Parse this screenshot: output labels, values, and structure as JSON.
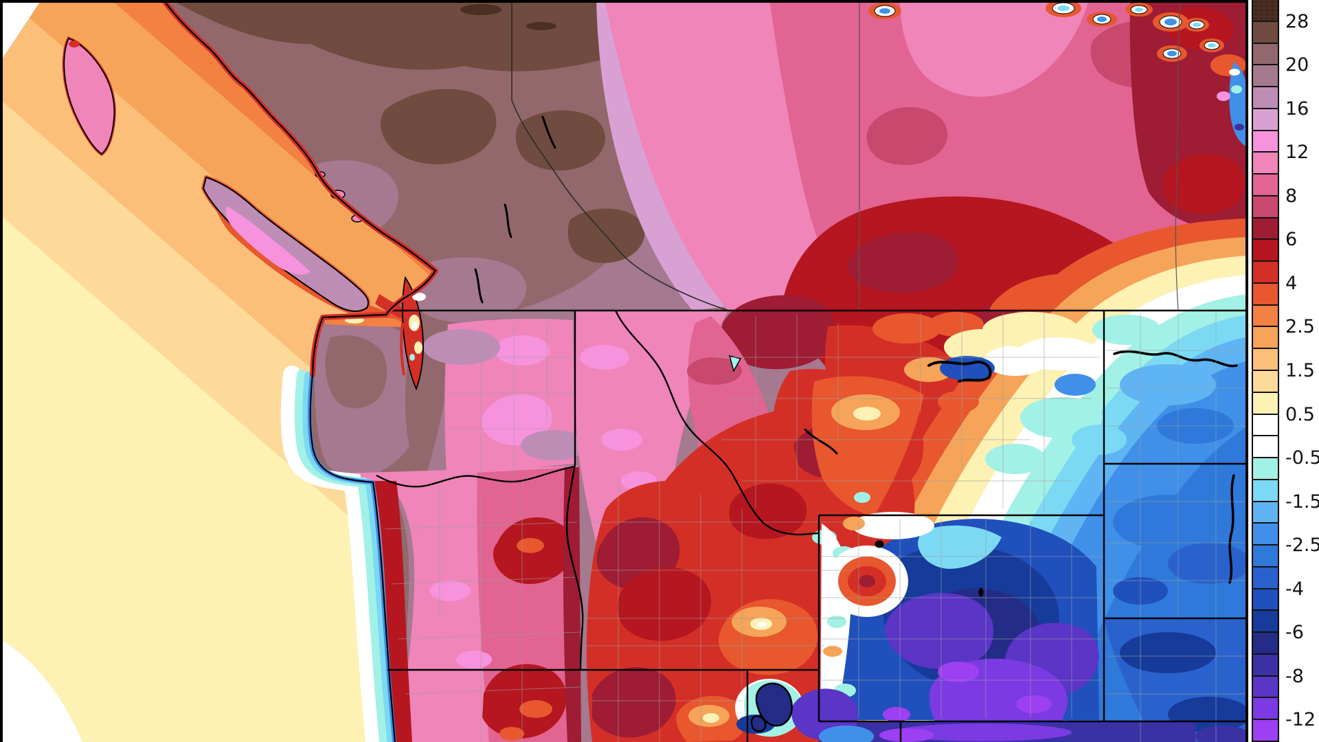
{
  "meta": {
    "description": "Filled-contour temperature anomaly weather map of the Pacific Northwest, northern Rockies and Canadian Prairies with a vertical color scale on the right",
    "panel_background": "#ffffff",
    "frame_color": "#000000"
  },
  "colorbar": {
    "cell_count": 34,
    "cells": [
      "#4a2f22",
      "#6f4b40",
      "#92686c",
      "#a5798f",
      "#bd8db6",
      "#d9a1d3",
      "#f792dd",
      "#ef85b9",
      "#e16492",
      "#c8486e",
      "#9e1c34",
      "#b5161f",
      "#d42f26",
      "#e8572e",
      "#f28142",
      "#f6a459",
      "#fbbf79",
      "#fdd99a",
      "#fdf1b4",
      "#ffffff",
      "#ffffff",
      "#a2f1e6",
      "#7cd9f3",
      "#5fb4f3",
      "#4090e9",
      "#2f79da",
      "#2a62cd",
      "#2050bc",
      "#173b9b",
      "#232c86",
      "#3a31a5",
      "#5a35c6",
      "#7c3ae2",
      "#9d3ff2"
    ],
    "labels": [
      {
        "text": "28",
        "boundary": 1
      },
      {
        "text": "20",
        "boundary": 3
      },
      {
        "text": "16",
        "boundary": 5
      },
      {
        "text": "12",
        "boundary": 7
      },
      {
        "text": "8",
        "boundary": 9
      },
      {
        "text": "6",
        "boundary": 11
      },
      {
        "text": "4",
        "boundary": 13
      },
      {
        "text": "2.5",
        "boundary": 15
      },
      {
        "text": "1.5",
        "boundary": 17
      },
      {
        "text": "0.5",
        "boundary": 19
      },
      {
        "text": "-0.5",
        "boundary": 21
      },
      {
        "text": "-1.5",
        "boundary": 23
      },
      {
        "text": "-2.5",
        "boundary": 25
      },
      {
        "text": "-4",
        "boundary": 27
      },
      {
        "text": "-6",
        "boundary": 29
      },
      {
        "text": "-8",
        "boundary": 31
      },
      {
        "text": "-12",
        "boundary": 33
      }
    ],
    "label_color": "#141414"
  }
}
